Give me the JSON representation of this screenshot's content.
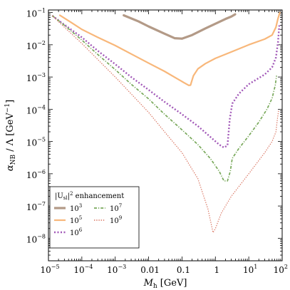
{
  "chart_data": {
    "type": "line",
    "xlabel_main": "M",
    "xlabel_sub": "h",
    "xlabel_unit": " [GeV]",
    "ylabel_main": "α",
    "ylabel_sub": "NB",
    "ylabel_unit": " / Λ [GeV",
    "ylabel_exp": "−1",
    "ylabel_close": "]",
    "xscale": "log",
    "yscale": "log",
    "xlim": [
      1e-05,
      100
    ],
    "ylim": [
      2e-09,
      0.12
    ],
    "x_ticks": [
      {
        "value": 1e-05,
        "base": "10",
        "exp": "−5"
      },
      {
        "value": 0.0001,
        "base": "10",
        "exp": "−4"
      },
      {
        "value": 0.001,
        "base": "10",
        "exp": "−3"
      },
      {
        "value": 0.01,
        "text": "0.01"
      },
      {
        "value": 0.1,
        "text": "0.1"
      },
      {
        "value": 1,
        "text": "1"
      },
      {
        "value": 10,
        "base": "10",
        "exp": "1"
      },
      {
        "value": 100,
        "base": "10",
        "exp": "2"
      }
    ],
    "y_ticks": [
      {
        "value": 1e-08,
        "base": "10",
        "exp": "−8"
      },
      {
        "value": 1e-07,
        "base": "10",
        "exp": "−7"
      },
      {
        "value": 1e-06,
        "base": "10",
        "exp": "−6"
      },
      {
        "value": 1e-05,
        "base": "10",
        "exp": "−5"
      },
      {
        "value": 0.0001,
        "base": "10",
        "exp": "−4"
      },
      {
        "value": 0.001,
        "base": "10",
        "exp": "−3"
      },
      {
        "value": 0.01,
        "base": "10",
        "exp": "−2"
      },
      {
        "value": 0.1,
        "base": "10",
        "exp": "−1"
      }
    ],
    "legend": {
      "placement": "bottom-left",
      "title_main": "|U",
      "title_sub": "sl",
      "title_rest": "|",
      "title_exp": "2",
      "title_tail": " enhancement"
    },
    "series": [
      {
        "label_base": "10",
        "label_exp": "3",
        "color": "#b39a87",
        "style": "solid",
        "width": 3.2,
        "points": [
          [
            0.0018,
            0.082
          ],
          [
            0.005,
            0.053
          ],
          [
            0.01,
            0.037
          ],
          [
            0.03,
            0.022
          ],
          [
            0.06,
            0.016
          ],
          [
            0.1,
            0.0155
          ],
          [
            0.2,
            0.02
          ],
          [
            0.5,
            0.032
          ],
          [
            1,
            0.045
          ],
          [
            2,
            0.063
          ],
          [
            3,
            0.075
          ],
          [
            3.9,
            0.088
          ]
        ]
      },
      {
        "label_base": "10",
        "label_exp": "5",
        "color": "#f8b77a",
        "style": "solid",
        "width": 2.2,
        "points": [
          [
            2.2e-05,
            0.082
          ],
          [
            5e-05,
            0.048
          ],
          [
            0.0001,
            0.03
          ],
          [
            0.0003,
            0.017
          ],
          [
            0.001,
            0.0095
          ],
          [
            0.003,
            0.0052
          ],
          [
            0.01,
            0.0027
          ],
          [
            0.03,
            0.0015
          ],
          [
            0.07,
            0.0009
          ],
          [
            0.12,
            0.00065
          ],
          [
            0.16,
            0.00055
          ],
          [
            0.18,
            0.00056
          ],
          [
            0.22,
            0.0011
          ],
          [
            0.3,
            0.0018
          ],
          [
            0.5,
            0.0026
          ],
          [
            1,
            0.0038
          ],
          [
            3,
            0.006
          ],
          [
            10,
            0.01
          ],
          [
            30,
            0.015
          ],
          [
            50,
            0.02
          ],
          [
            65,
            0.035
          ],
          [
            75,
            0.065
          ],
          [
            85,
            0.1
          ]
        ]
      },
      {
        "label_base": "10",
        "label_exp": "6",
        "color": "#a259b8",
        "style": "dotted",
        "width": 2.4,
        "points": [
          [
            1.3e-05,
            0.08
          ],
          [
            3e-05,
            0.042
          ],
          [
            0.0001,
            0.017
          ],
          [
            0.0003,
            0.0065
          ],
          [
            0.001,
            0.0025
          ],
          [
            0.003,
            0.001
          ],
          [
            0.01,
            0.0004
          ],
          [
            0.03,
            0.00017
          ],
          [
            0.1,
            7e-05
          ],
          [
            0.3,
            3e-05
          ],
          [
            0.7,
            1.4e-05
          ],
          [
            1.3,
            8e-06
          ],
          [
            1.8,
            6.5e-06
          ],
          [
            2.3,
            7.5e-06
          ],
          [
            2.7,
            5e-05
          ],
          [
            3.2,
            0.00015
          ],
          [
            5,
            0.0003
          ],
          [
            10,
            0.0006
          ],
          [
            30,
            0.0012
          ],
          [
            50,
            0.002
          ],
          [
            65,
            0.004
          ],
          [
            75,
            0.012
          ],
          [
            82,
            0.04
          ]
        ]
      },
      {
        "label_base": "10",
        "label_exp": "7",
        "color": "#78a85a",
        "style": "dashdot",
        "width": 1.7,
        "points": [
          [
            1.3e-05,
            0.08
          ],
          [
            3e-05,
            0.04
          ],
          [
            0.0001,
            0.014
          ],
          [
            0.0003,
            0.005
          ],
          [
            0.001,
            0.0017
          ],
          [
            0.003,
            0.0006
          ],
          [
            0.01,
            0.00021
          ],
          [
            0.03,
            7e-05
          ],
          [
            0.1,
            2.3e-05
          ],
          [
            0.3,
            8e-06
          ],
          [
            0.7,
            3e-06
          ],
          [
            1.3,
            1.2e-06
          ],
          [
            1.8,
            6e-07
          ],
          [
            2.3,
            6e-07
          ],
          [
            2.8,
            1.2e-06
          ],
          [
            3.2,
            3e-06
          ],
          [
            5,
            6e-06
          ],
          [
            10,
            1.5e-05
          ],
          [
            20,
            4e-05
          ],
          [
            35,
            0.0001
          ],
          [
            50,
            0.00022
          ],
          [
            62,
            0.00055
          ],
          [
            68,
            0.0011
          ]
        ]
      },
      {
        "label_base": "10",
        "label_exp": "9",
        "color": "#d9735f",
        "style": "dotted-fine",
        "width": 1.2,
        "points": [
          [
            1.3e-05,
            0.08
          ],
          [
            3e-05,
            0.035
          ],
          [
            0.0001,
            0.011
          ],
          [
            0.0003,
            0.0035
          ],
          [
            0.001,
            0.001
          ],
          [
            0.003,
            0.0003
          ],
          [
            0.01,
            8e-05
          ],
          [
            0.03,
            2e-05
          ],
          [
            0.1,
            4.5e-06
          ],
          [
            0.3,
            7e-07
          ],
          [
            0.6,
            8e-08
          ],
          [
            0.85,
            1.5e-08
          ],
          [
            1.0,
            2e-08
          ],
          [
            1.5,
            6e-08
          ],
          [
            3,
            2e-07
          ],
          [
            10,
            1e-06
          ],
          [
            30,
            4.5e-06
          ],
          [
            50,
            1e-05
          ],
          [
            65,
            2e-05
          ],
          [
            72,
            5e-05
          ],
          [
            78,
            9e-05
          ]
        ]
      }
    ]
  }
}
